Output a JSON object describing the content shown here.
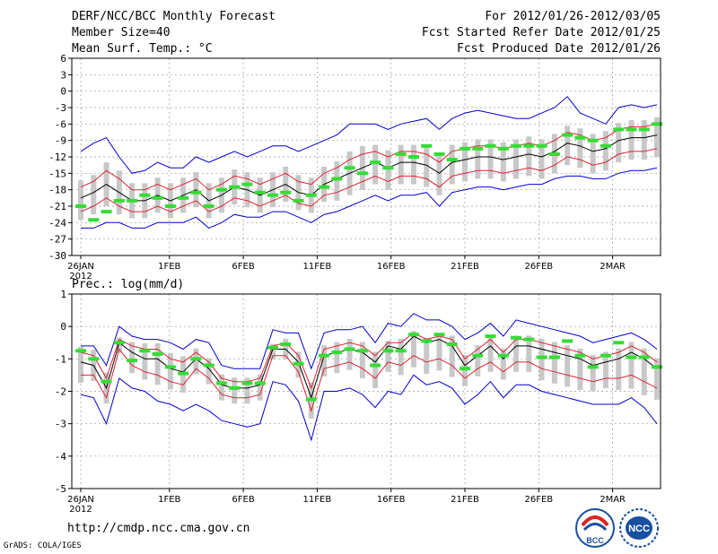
{
  "header": {
    "title": "DERF/NCC/BCC Monthly Forecast",
    "member_size": "Member Size=40",
    "variable1": "Mean Surf. Temp.: °C",
    "forecast_range": "For 2012/01/26-2012/03/05",
    "started_date": "Fcst Started Refer Date 2012/01/25",
    "produced_date": "Fcst Produced Date 2012/01/26"
  },
  "footer": {
    "url": "http://cmdp.ncc.cma.gov.cn",
    "credit": "GrADS: COLA/IGES",
    "logo_left_text": "BCC",
    "logo_right_text": "NCC"
  },
  "colors": {
    "ensemble_box": "#c8c8c8",
    "observed": "#33dd33",
    "mean": "#000000",
    "spread": "#dd2233",
    "envelope": "#0000cc",
    "grid": "#999999"
  },
  "chart_data": [
    {
      "type": "line",
      "title": "Mean Surf. Temp.: °C",
      "ylim": [
        -30,
        6
      ],
      "yticks": [
        6,
        3,
        0,
        -3,
        -6,
        -9,
        -12,
        -15,
        -18,
        -21,
        -24,
        -27,
        -30
      ],
      "xticks": [
        {
          "day": 0,
          "label": "26JAN"
        },
        {
          "day": 6,
          "label": "1FEB"
        },
        {
          "day": 11,
          "label": "6FEB"
        },
        {
          "day": 16,
          "label": "11FEB"
        },
        {
          "day": 21,
          "label": "16FEB"
        },
        {
          "day": 26,
          "label": "21FEB"
        },
        {
          "day": 31,
          "label": "26FEB"
        },
        {
          "day": 36,
          "label": "2MAR"
        }
      ],
      "year_label": "2012",
      "days": 40,
      "series": [
        {
          "name": "ensemble_mean",
          "values": [
            -19.5,
            -18.5,
            -17,
            -18.5,
            -20,
            -20,
            -19,
            -20,
            -19,
            -18,
            -20,
            -19,
            -17.5,
            -18,
            -19,
            -18,
            -17,
            -18.5,
            -19,
            -17,
            -16,
            -15,
            -14,
            -13,
            -14,
            -13,
            -13,
            -13.5,
            -15,
            -13,
            -12.5,
            -12,
            -12,
            -12.5,
            -12,
            -11.5,
            -12,
            -11,
            -9.5,
            -10,
            -11,
            -10.5,
            -9,
            -8.5,
            -8.5,
            -8
          ]
        },
        {
          "name": "spread_upper",
          "values": [
            -17.5,
            -16.5,
            -14.5,
            -16,
            -18,
            -18,
            -17,
            -18,
            -17,
            -16,
            -18,
            -17,
            -15.5,
            -16,
            -17,
            -16,
            -15,
            -16.5,
            -17,
            -15,
            -14,
            -12.5,
            -11.5,
            -11,
            -12,
            -11,
            -11,
            -11.5,
            -13,
            -11,
            -10.5,
            -10,
            -10,
            -10.5,
            -10,
            -9.5,
            -10,
            -9,
            -7.5,
            -8,
            -9,
            -8.5,
            -7,
            -6.5,
            -6.5,
            -6
          ]
        },
        {
          "name": "spread_lower",
          "values": [
            -22,
            -21,
            -19.5,
            -21,
            -22,
            -22,
            -21,
            -22,
            -21,
            -20,
            -22,
            -21,
            -19.5,
            -20,
            -21,
            -20,
            -19,
            -20.5,
            -21,
            -19,
            -18.5,
            -17.5,
            -16.5,
            -15.5,
            -16.5,
            -15.5,
            -15.5,
            -16,
            -17.5,
            -15.5,
            -15,
            -14.5,
            -14.5,
            -15,
            -14.5,
            -14,
            -14.5,
            -13.5,
            -12,
            -12.5,
            -13.5,
            -13,
            -11.5,
            -11,
            -11,
            -10.5
          ]
        },
        {
          "name": "envelope_max",
          "values": [
            -11,
            -9.5,
            -8.5,
            -12,
            -15,
            -14.5,
            -13,
            -14,
            -14,
            -12,
            -13,
            -12,
            -11,
            -12,
            -11,
            -10,
            -10,
            -11,
            -10,
            -9,
            -8,
            -6,
            -6,
            -6,
            -7,
            -6,
            -5.5,
            -5,
            -7,
            -5,
            -4,
            -3.5,
            -4,
            -4.5,
            -5,
            -5,
            -4,
            -3,
            -1,
            -4,
            -5,
            -6,
            -3,
            -2.5,
            -3,
            -2.5
          ]
        },
        {
          "name": "envelope_min",
          "values": [
            -25,
            -25,
            -24,
            -24,
            -25,
            -25,
            -24,
            -24,
            -24,
            -23,
            -25,
            -24,
            -22.5,
            -23,
            -23,
            -22,
            -22,
            -23,
            -24,
            -22.5,
            -22,
            -21,
            -20,
            -19,
            -20,
            -19,
            -19,
            -18.5,
            -21,
            -18.5,
            -18,
            -17.5,
            -17.5,
            -18,
            -17.5,
            -17,
            -17,
            -16,
            -15.5,
            -15.5,
            -16,
            -16,
            -15,
            -14.5,
            -14.5,
            -14
          ]
        },
        {
          "name": "observed",
          "values": [
            -21,
            -23.5,
            -22,
            -20,
            -20,
            -19,
            -19.5,
            -21,
            -19.5,
            -18.5,
            -21,
            -18,
            -17.5,
            -17,
            -18.5,
            -19,
            -18.5,
            -20,
            -19,
            -17.5,
            -16,
            -14,
            -15,
            -13,
            -14,
            -11.5,
            -12,
            -10,
            -11.5,
            -12.5,
            -10.5,
            -10.5,
            -10,
            -10.5,
            -10,
            -10,
            -10,
            -11.5,
            -8,
            -8.5,
            -9,
            -10,
            -7,
            -7,
            -7,
            -6
          ]
        }
      ]
    },
    {
      "type": "line",
      "title": "Prec.: log(mm/d)",
      "ylim": [
        -5,
        1
      ],
      "yticks": [
        1,
        0,
        -1,
        -2,
        -3,
        -4,
        -5
      ],
      "xticks": [
        {
          "day": 0,
          "label": "26JAN"
        },
        {
          "day": 6,
          "label": "1FEB"
        },
        {
          "day": 11,
          "label": "6FEB"
        },
        {
          "day": 16,
          "label": "11FEB"
        },
        {
          "day": 21,
          "label": "16FEB"
        },
        {
          "day": 26,
          "label": "21FEB"
        },
        {
          "day": 31,
          "label": "26FEB"
        },
        {
          "day": 36,
          "label": "2MAR"
        }
      ],
      "year_label": "2012",
      "days": 40,
      "series": [
        {
          "name": "ensemble_mean",
          "values": [
            -1.1,
            -1.2,
            -1.9,
            -0.5,
            -0.8,
            -1.0,
            -1.0,
            -1.3,
            -1.4,
            -1.0,
            -1.3,
            -1.8,
            -1.9,
            -1.9,
            -1.8,
            -0.7,
            -0.7,
            -1.1,
            -2.2,
            -0.9,
            -0.8,
            -0.7,
            -0.8,
            -1.1,
            -0.6,
            -0.7,
            -0.3,
            -0.5,
            -0.4,
            -0.6,
            -1.2,
            -0.9,
            -0.6,
            -1.0,
            -0.6,
            -0.6,
            -0.7,
            -0.8,
            -0.9,
            -1.0,
            -1.2,
            -1.1,
            -1.0,
            -0.8,
            -1.0,
            -1.3
          ]
        },
        {
          "name": "spread_upper",
          "values": [
            -0.8,
            -0.9,
            -1.6,
            -0.4,
            -0.6,
            -0.7,
            -0.7,
            -1.0,
            -1.1,
            -0.8,
            -1.1,
            -1.6,
            -1.7,
            -1.7,
            -1.6,
            -0.6,
            -0.5,
            -0.9,
            -1.9,
            -0.7,
            -0.6,
            -0.5,
            -0.6,
            -0.9,
            -0.5,
            -0.5,
            -0.2,
            -0.4,
            -0.3,
            -0.4,
            -1.0,
            -0.7,
            -0.4,
            -0.8,
            -0.4,
            -0.4,
            -0.5,
            -0.6,
            -0.7,
            -0.8,
            -1.0,
            -0.9,
            -0.8,
            -0.6,
            -0.8,
            -1.1
          ]
        },
        {
          "name": "spread_lower",
          "values": [
            -1.5,
            -1.5,
            -2.2,
            -0.7,
            -1.2,
            -1.4,
            -1.5,
            -1.7,
            -1.8,
            -1.3,
            -1.6,
            -2.1,
            -2.2,
            -2.2,
            -2.1,
            -0.9,
            -0.9,
            -1.4,
            -2.6,
            -1.3,
            -1.2,
            -1.1,
            -1.3,
            -1.6,
            -1.1,
            -1.2,
            -0.9,
            -1.1,
            -1.0,
            -1.2,
            -1.6,
            -1.3,
            -1.1,
            -1.4,
            -1.1,
            -1.1,
            -1.3,
            -1.4,
            -1.5,
            -1.6,
            -1.7,
            -1.6,
            -1.6,
            -1.5,
            -1.7,
            -1.9
          ]
        },
        {
          "name": "envelope_max",
          "values": [
            -0.6,
            -0.6,
            -1.2,
            0.0,
            -0.3,
            -0.4,
            -0.4,
            -0.5,
            -0.7,
            -0.4,
            -0.5,
            -1.2,
            -1.3,
            -1.3,
            -1.3,
            -0.1,
            -0.2,
            -0.2,
            -1.3,
            -0.2,
            -0.1,
            -0.1,
            0.0,
            -0.5,
            0.1,
            0.0,
            0.4,
            0.2,
            0.2,
            0.0,
            -0.4,
            -0.2,
            0.1,
            -0.3,
            0.2,
            0.1,
            0.0,
            -0.1,
            -0.2,
            -0.3,
            -0.5,
            -0.4,
            -0.3,
            -0.2,
            -0.4,
            -0.7
          ]
        },
        {
          "name": "envelope_min",
          "values": [
            -2.1,
            -2.2,
            -3.0,
            -1.6,
            -1.9,
            -2.0,
            -2.3,
            -2.4,
            -2.6,
            -2.4,
            -2.6,
            -2.9,
            -3.0,
            -3.1,
            -3.0,
            -1.7,
            -1.8,
            -2.3,
            -3.5,
            -2.0,
            -2.0,
            -1.9,
            -2.1,
            -2.5,
            -2.0,
            -2.1,
            -1.5,
            -1.8,
            -1.7,
            -1.9,
            -2.4,
            -2.1,
            -1.7,
            -2.2,
            -1.8,
            -1.8,
            -2.0,
            -2.1,
            -2.2,
            -2.3,
            -2.4,
            -2.4,
            -2.4,
            -2.2,
            -2.5,
            -3.0
          ]
        },
        {
          "name": "observed",
          "values": [
            -0.75,
            -1.0,
            -1.7,
            -0.5,
            -1.05,
            -0.75,
            -0.85,
            -1.25,
            -1.45,
            -1.0,
            -1.2,
            -1.75,
            -1.9,
            -1.75,
            -1.75,
            -0.65,
            -0.55,
            -1.15,
            -2.25,
            -0.9,
            -0.8,
            -0.7,
            -0.75,
            -1.2,
            -0.75,
            -0.75,
            -0.25,
            -0.45,
            -0.25,
            -0.55,
            -1.3,
            -0.9,
            -0.3,
            -0.9,
            -0.35,
            -0.4,
            -0.95,
            -0.95,
            -0.45,
            -0.9,
            -1.25,
            -0.9,
            -0.5,
            -0.95,
            -0.95,
            -1.25
          ]
        }
      ]
    }
  ]
}
